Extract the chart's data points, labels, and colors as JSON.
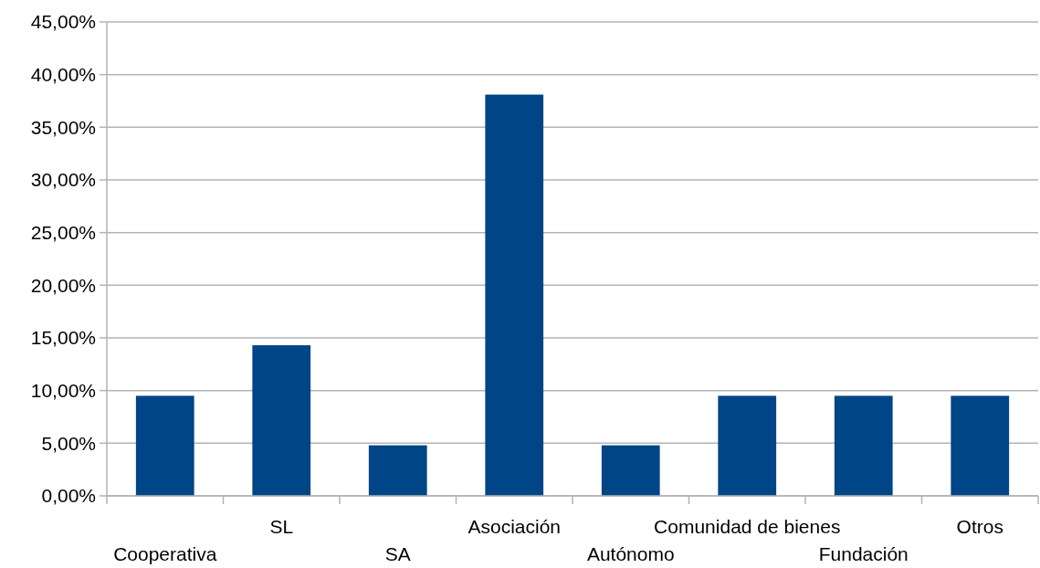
{
  "chart_data": {
    "type": "bar",
    "categories": [
      "Cooperativa",
      "SL",
      "SA",
      "Asociación",
      "Autónomo",
      "Comunidad de bienes",
      "Fundación",
      "Otros"
    ],
    "values": [
      9.5,
      14.3,
      4.8,
      38.1,
      4.8,
      9.5,
      9.5,
      9.5
    ],
    "color": "#004586",
    "ylim": [
      0,
      45
    ],
    "yticks": [
      {
        "value": 0,
        "label": "0,00%"
      },
      {
        "value": 5,
        "label": "5,00%"
      },
      {
        "value": 10,
        "label": "10,00%"
      },
      {
        "value": 15,
        "label": "15,00%"
      },
      {
        "value": 20,
        "label": "20,00%"
      },
      {
        "value": 25,
        "label": "25,00%"
      },
      {
        "value": 30,
        "label": "30,00%"
      },
      {
        "value": 35,
        "label": "35,00%"
      },
      {
        "value": 40,
        "label": "40,00%"
      },
      {
        "value": 45,
        "label": "45,00%"
      }
    ],
    "grid": "y"
  }
}
